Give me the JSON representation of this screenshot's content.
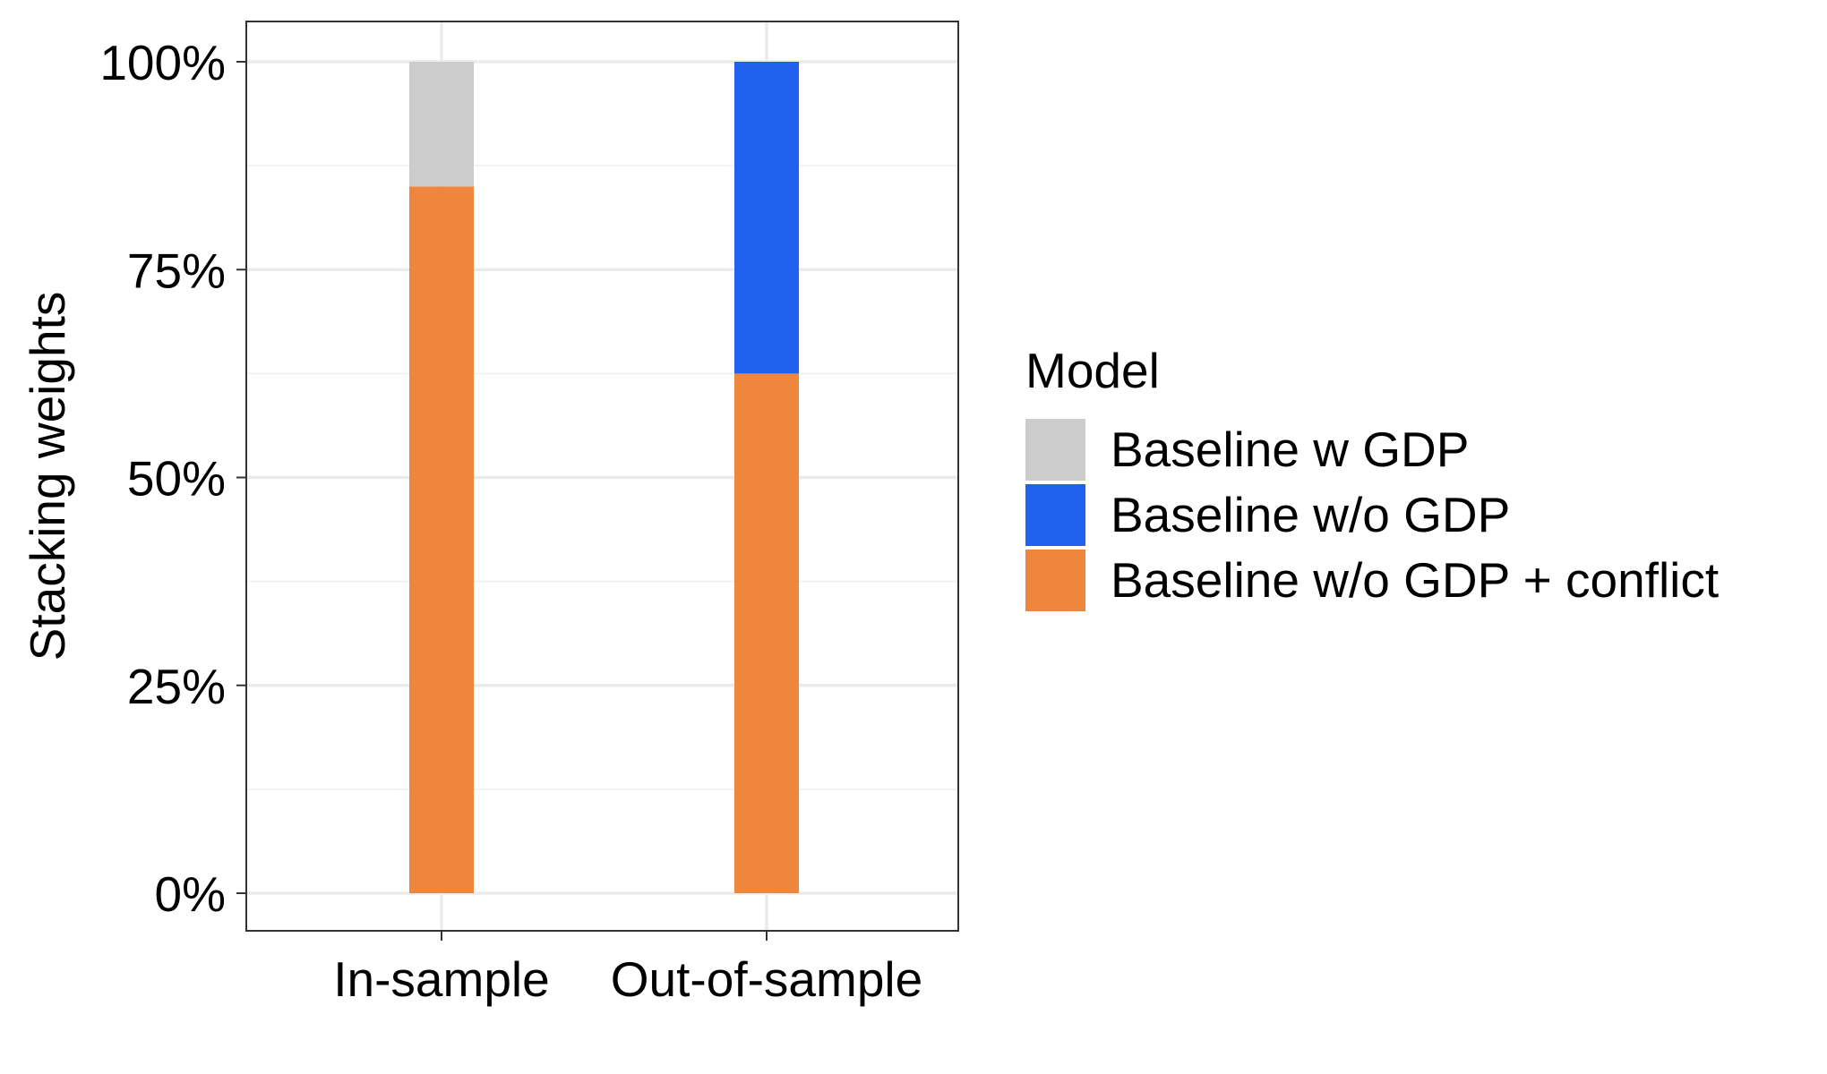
{
  "chart_data": {
    "type": "bar",
    "stacked": true,
    "categories": [
      "In-sample",
      "Out-of-sample"
    ],
    "series": [
      {
        "name": "Baseline w GDP",
        "color": "#CCCCCC",
        "values": [
          0.15,
          0.0
        ]
      },
      {
        "name": "Baseline w/o GDP",
        "color": "#2062EF",
        "values": [
          0.0,
          0.375
        ]
      },
      {
        "name": "Baseline w/o GDP + conflict",
        "color": "#EF863E",
        "values": [
          0.85,
          0.625
        ]
      }
    ],
    "stack_order_bottom_to_top": [
      "Baseline w/o GDP + conflict",
      "Baseline w/o GDP",
      "Baseline w GDP"
    ],
    "xlabel": "",
    "ylabel": "Stacking weights",
    "ylim": [
      0,
      1
    ],
    "yticks": [
      0,
      0.25,
      0.5,
      0.75,
      1.0
    ],
    "ytick_labels": [
      "0%",
      "25%",
      "50%",
      "75%",
      "100%"
    ],
    "grid": true,
    "legend": {
      "title": "Model",
      "position": "right"
    }
  }
}
